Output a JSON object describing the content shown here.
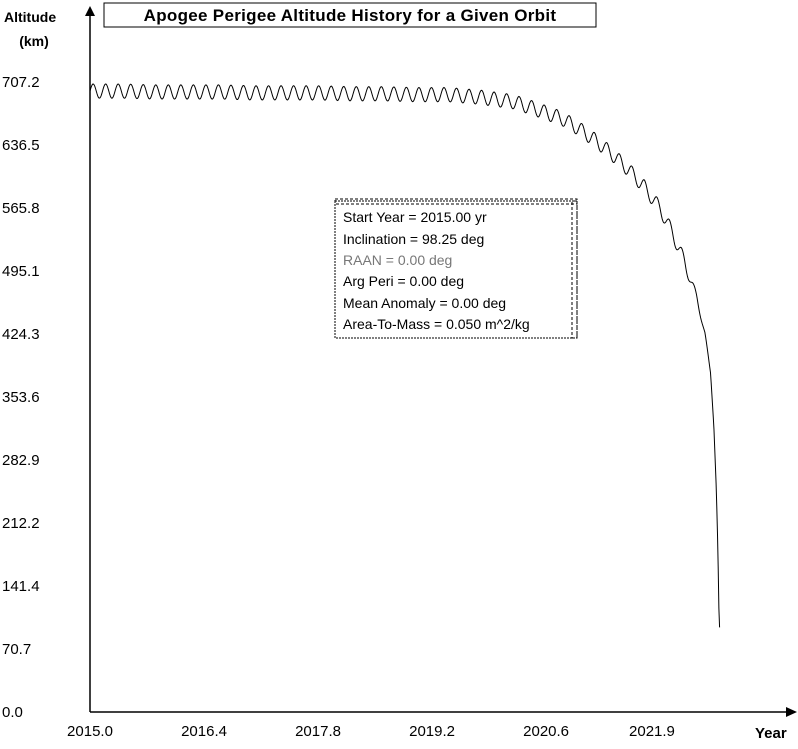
{
  "chart_data": {
    "type": "line",
    "title": "Apogee Perigee Altitude History for a Given Orbit",
    "ylabel_line1": "Altitude",
    "ylabel_line2": "(km)",
    "xlabel": "Year",
    "xlim": [
      2015.0,
      2023.3
    ],
    "ylim": [
      0.0,
      707.2
    ],
    "x_ticks": [
      "2015.0",
      "2016.4",
      "2017.8",
      "2019.2",
      "2020.6",
      "2021.9"
    ],
    "x_tick_values": [
      2015.0,
      2016.4,
      2017.8,
      2019.2,
      2020.6,
      2021.9
    ],
    "y_ticks": [
      "707.2",
      "636.5",
      "565.8",
      "495.1",
      "424.3",
      "353.6",
      "282.9",
      "212.2",
      "141.4",
      "70.7",
      "0.0"
    ],
    "y_tick_values": [
      707.2,
      636.5,
      565.8,
      495.1,
      424.3,
      353.6,
      282.9,
      212.2,
      141.4,
      70.7,
      0.0
    ],
    "grid": false,
    "legend": "none",
    "series": [
      {
        "x": [
          2015.0,
          2015.4,
          2015.8,
          2016.2,
          2016.6,
          2017.0,
          2017.4,
          2017.8,
          2018.2,
          2018.6,
          2019.0,
          2019.4,
          2019.8,
          2020.2,
          2020.5,
          2020.8,
          2021.0,
          2021.2,
          2021.4,
          2021.6,
          2021.8,
          2022.0,
          2022.15,
          2022.3,
          2022.45,
          2022.55,
          2022.62,
          2022.66,
          2022.69,
          2022.71,
          2022.72,
          2022.73
        ],
        "y": [
          697,
          697,
          696,
          696,
          696,
          695,
          695,
          695,
          694,
          694,
          693,
          693,
          690,
          685,
          676,
          666,
          655,
          642,
          627,
          610,
          590,
          565,
          538,
          505,
          465,
          425,
          380,
          320,
          250,
          180,
          120,
          95
        ],
        "amplitude_km": 8,
        "periods_per_year": 6.5,
        "color": "#000000"
      }
    ],
    "info_box": {
      "lines": [
        "Start Year = 2015.00 yr",
        "Inclination = 98.25 deg",
        "RAAN = 0.00 deg",
        "Arg Peri = 0.00 deg",
        "Mean Anomaly = 0.00 deg",
        "Area-To-Mass = 0.050 m^2/kg"
      ]
    }
  }
}
